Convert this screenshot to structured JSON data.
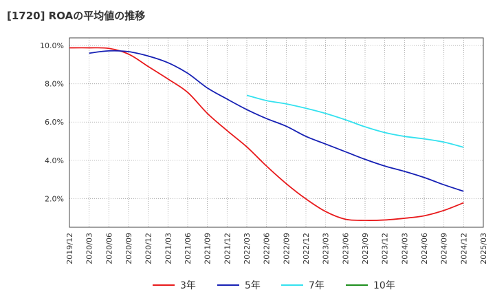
{
  "chart_data": {
    "type": "line",
    "title": "[1720]  ROAの平均値の推移",
    "x_ticks": [
      "2019/12",
      "2020/03",
      "2020/06",
      "2020/09",
      "2020/12",
      "2021/03",
      "2021/06",
      "2021/09",
      "2021/12",
      "2022/03",
      "2022/06",
      "2022/09",
      "2022/12",
      "2023/03",
      "2023/06",
      "2023/09",
      "2023/12",
      "2024/03",
      "2024/06",
      "2024/09",
      "2024/12",
      "2025/03"
    ],
    "y_ticks": [
      "2.0%",
      "4.0%",
      "6.0%",
      "8.0%",
      "10.0%"
    ],
    "y_tick_values": [
      2,
      4,
      6,
      8,
      10
    ],
    "ylim": [
      0.5,
      10.4
    ],
    "grid": true,
    "legend_position": "bottom",
    "series": [
      {
        "name": "3年",
        "color": "#e8191b",
        "x": [
          "2019/12",
          "2020/03",
          "2020/06",
          "2020/09",
          "2020/12",
          "2021/03",
          "2021/06",
          "2021/09",
          "2021/12",
          "2022/03",
          "2022/06",
          "2022/09",
          "2022/12",
          "2023/03",
          "2023/06",
          "2023/09",
          "2023/12",
          "2024/03",
          "2024/06",
          "2024/09",
          "2024/12"
        ],
        "values": [
          9.88,
          9.88,
          9.85,
          9.55,
          8.9,
          8.25,
          7.55,
          6.45,
          5.55,
          4.7,
          3.7,
          2.78,
          1.98,
          1.32,
          0.92,
          0.86,
          0.88,
          0.97,
          1.1,
          1.38,
          1.78
        ]
      },
      {
        "name": "5年",
        "color": "#1620b4",
        "x": [
          "2020/03",
          "2020/06",
          "2020/09",
          "2020/12",
          "2021/03",
          "2021/06",
          "2021/09",
          "2021/12",
          "2022/03",
          "2022/06",
          "2022/09",
          "2022/12",
          "2023/03",
          "2023/06",
          "2023/09",
          "2023/12",
          "2024/03",
          "2024/06",
          "2024/09",
          "2024/12"
        ],
        "values": [
          9.6,
          9.72,
          9.68,
          9.45,
          9.1,
          8.55,
          7.78,
          7.2,
          6.65,
          6.18,
          5.78,
          5.25,
          4.85,
          4.45,
          4.05,
          3.7,
          3.42,
          3.1,
          2.72,
          2.38
        ]
      },
      {
        "name": "7年",
        "color": "#33e1ef",
        "x": [
          "2022/03",
          "2022/06",
          "2022/09",
          "2022/12",
          "2023/03",
          "2023/06",
          "2023/09",
          "2023/12",
          "2024/03",
          "2024/06",
          "2024/09",
          "2024/12"
        ],
        "values": [
          7.4,
          7.12,
          6.95,
          6.72,
          6.45,
          6.12,
          5.75,
          5.45,
          5.25,
          5.12,
          4.95,
          4.68
        ]
      },
      {
        "name": "10年",
        "color": "#1e8f1e",
        "x": [],
        "values": []
      }
    ]
  }
}
